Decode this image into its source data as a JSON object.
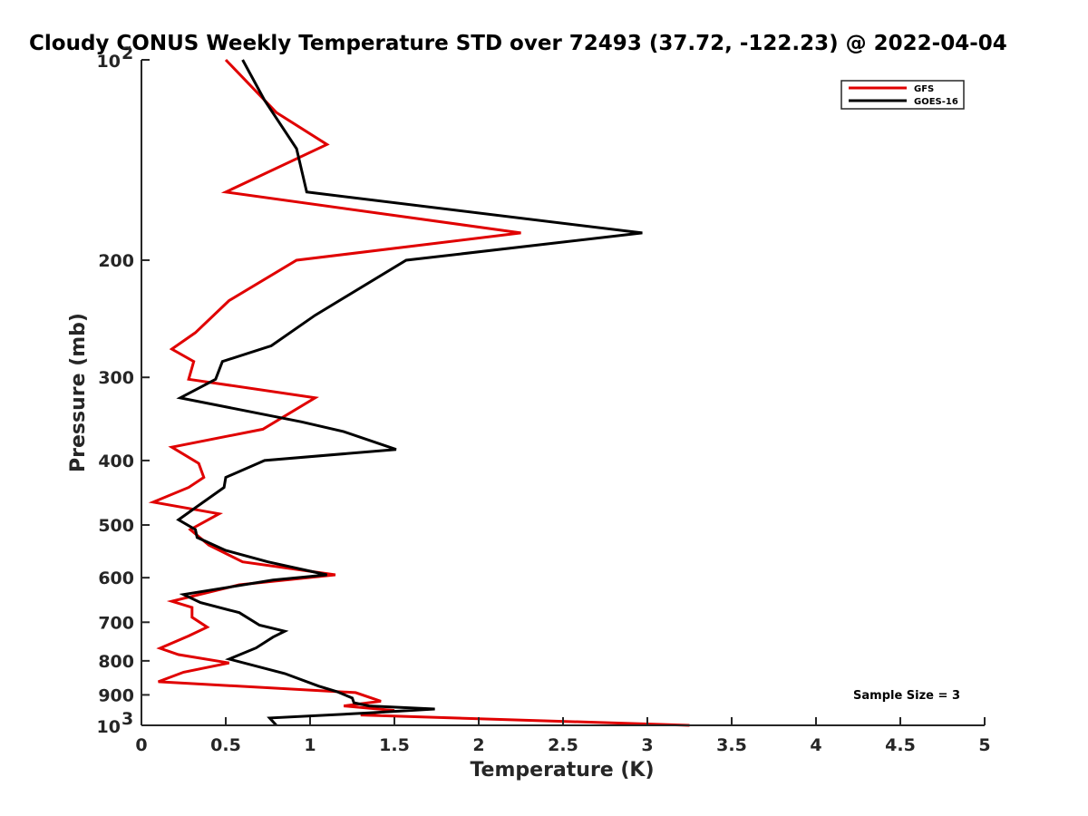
{
  "chart_data": {
    "type": "line",
    "title": "Cloudy CONUS Weekly Temperature STD over 72493 (37.72, -122.23) @ 2022-04-04",
    "xlabel": "Temperature (K)",
    "ylabel": "Pressure (mb)",
    "xlim": [
      0,
      5
    ],
    "ylim": [
      100,
      1000
    ],
    "y_scale": "log",
    "y_reversed": true,
    "x_ticks": [
      "0",
      "0.5",
      "1",
      "1.5",
      "2",
      "2.5",
      "3",
      "3.5",
      "4",
      "4.5",
      "5"
    ],
    "y_ticks": [
      {
        "value": 100,
        "base": "10",
        "exp": "2"
      },
      {
        "value": 200,
        "label": "200"
      },
      {
        "value": 300,
        "label": "300"
      },
      {
        "value": 400,
        "label": "400"
      },
      {
        "value": 500,
        "label": "500"
      },
      {
        "value": 600,
        "label": "600"
      },
      {
        "value": 700,
        "label": "700"
      },
      {
        "value": 800,
        "label": "800"
      },
      {
        "value": 900,
        "label": "900"
      },
      {
        "value": 1000,
        "base": "10",
        "exp": "3"
      }
    ],
    "grid": false,
    "legend_position": "top-right",
    "annotation": "Sample Size = 3",
    "series": [
      {
        "name": "GFS",
        "color": "#e00000",
        "points": [
          [
            0.5,
            100
          ],
          [
            0.8,
            120
          ],
          [
            1.1,
            134
          ],
          [
            0.5,
            158
          ],
          [
            2.25,
            182
          ],
          [
            0.92,
            200
          ],
          [
            0.52,
            230
          ],
          [
            0.32,
            257
          ],
          [
            0.18,
            272
          ],
          [
            0.31,
            284
          ],
          [
            0.28,
            302
          ],
          [
            1.03,
            322
          ],
          [
            0.72,
            359
          ],
          [
            0.18,
            382
          ],
          [
            0.34,
            404
          ],
          [
            0.37,
            424
          ],
          [
            0.28,
            439
          ],
          [
            0.07,
            462
          ],
          [
            0.46,
            481
          ],
          [
            0.29,
            508
          ],
          [
            0.4,
            536
          ],
          [
            0.6,
            568
          ],
          [
            1.15,
            594
          ],
          [
            0.58,
            615
          ],
          [
            0.18,
            651
          ],
          [
            0.3,
            665
          ],
          [
            0.3,
            688
          ],
          [
            0.39,
            712
          ],
          [
            0.28,
            734
          ],
          [
            0.11,
            766
          ],
          [
            0.22,
            783
          ],
          [
            0.52,
            806
          ],
          [
            0.25,
            832
          ],
          [
            0.1,
            860
          ],
          [
            1.27,
            893
          ],
          [
            1.42,
            920
          ],
          [
            1.2,
            935
          ],
          [
            1.5,
            950
          ],
          [
            1.3,
            965
          ],
          [
            3.25,
            1000
          ]
        ]
      },
      {
        "name": "GOES-16",
        "color": "#000000",
        "points": [
          [
            0.6,
            100
          ],
          [
            0.73,
            115
          ],
          [
            0.92,
            136
          ],
          [
            0.98,
            158
          ],
          [
            2.97,
            182
          ],
          [
            1.57,
            200
          ],
          [
            1.03,
            242
          ],
          [
            0.77,
            269
          ],
          [
            0.48,
            284
          ],
          [
            0.44,
            302
          ],
          [
            0.23,
            322
          ],
          [
            0.95,
            350
          ],
          [
            1.2,
            362
          ],
          [
            1.51,
            385
          ],
          [
            0.73,
            400
          ],
          [
            0.5,
            424
          ],
          [
            0.49,
            439
          ],
          [
            0.32,
            471
          ],
          [
            0.22,
            491
          ],
          [
            0.32,
            508
          ],
          [
            0.33,
            522
          ],
          [
            0.5,
            546
          ],
          [
            0.75,
            568
          ],
          [
            1.1,
            594
          ],
          [
            0.78,
            605
          ],
          [
            0.25,
            636
          ],
          [
            0.35,
            654
          ],
          [
            0.58,
            677
          ],
          [
            0.7,
            707
          ],
          [
            0.85,
            722
          ],
          [
            0.78,
            737
          ],
          [
            0.68,
            765
          ],
          [
            0.52,
            795
          ],
          [
            0.85,
            836
          ],
          [
            1.05,
            873
          ],
          [
            1.16,
            890
          ],
          [
            1.25,
            910
          ],
          [
            1.26,
            925
          ],
          [
            1.35,
            935
          ],
          [
            1.74,
            945
          ],
          [
            1.35,
            958
          ],
          [
            0.76,
            975
          ],
          [
            0.8,
            1000
          ]
        ]
      }
    ]
  }
}
